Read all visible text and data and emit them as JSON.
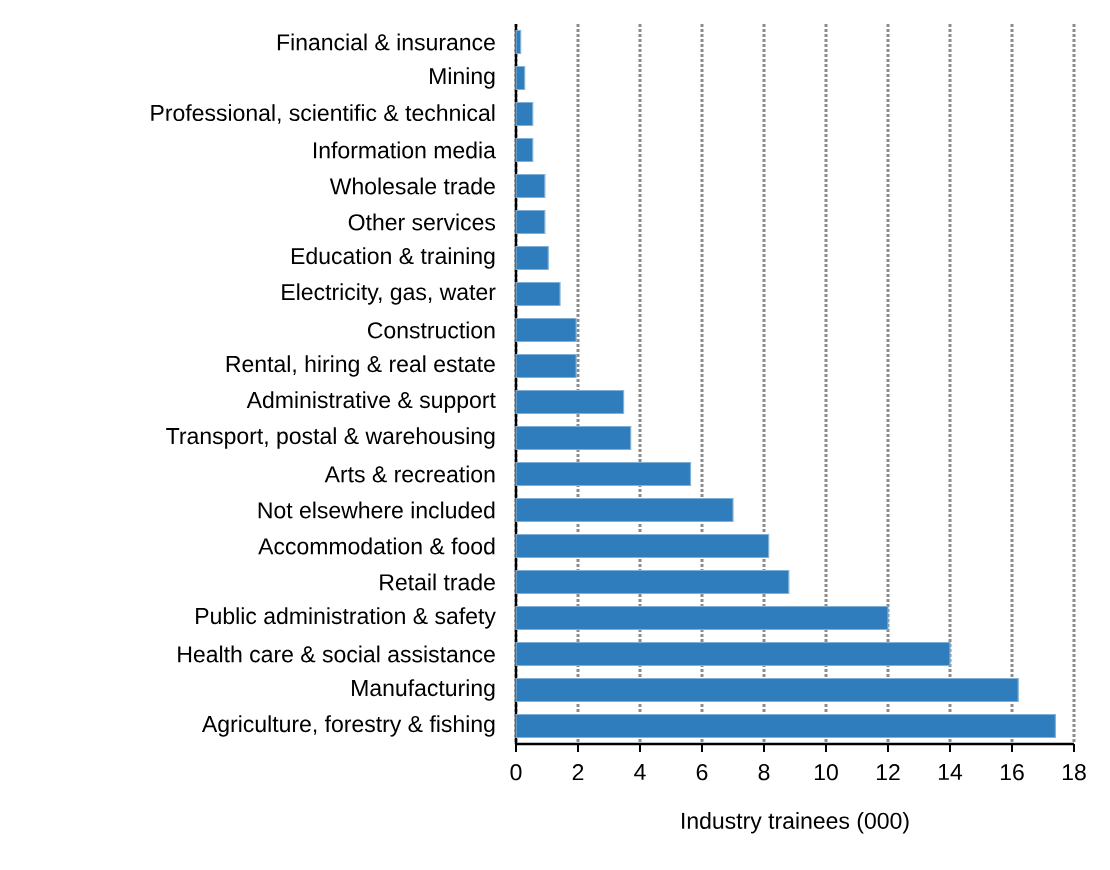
{
  "chart_data": {
    "type": "bar",
    "orientation": "horizontal",
    "xlabel": "Industry trainees (000)",
    "categories": [
      "Financial & insurance",
      "Mining",
      "Professional, scientific & technical",
      "Information media",
      "Wholesale trade",
      "Other services",
      "Education & training",
      "Electricity, gas, water",
      "Construction",
      "Rental, hiring & real estate",
      "Administrative & support",
      "Transport, postal & warehousing",
      "Arts & recreation",
      "Not elsewhere included",
      "Accommodation & food",
      "Retail trade",
      "Public administration & safety",
      "Health care & social assistance",
      "Manufacturing",
      "Agriculture, forestry & fishing"
    ],
    "values": [
      0.15,
      0.28,
      0.54,
      0.54,
      0.93,
      0.93,
      1.04,
      1.42,
      1.94,
      1.94,
      3.47,
      3.7,
      5.63,
      7.0,
      8.15,
      8.8,
      12.0,
      14.0,
      16.2,
      17.4
    ],
    "color": "#2f7dbc",
    "xlim": [
      0,
      18
    ],
    "xticks": [
      0,
      2,
      4,
      6,
      8,
      10,
      12,
      14,
      16,
      18
    ],
    "grid": "x"
  }
}
